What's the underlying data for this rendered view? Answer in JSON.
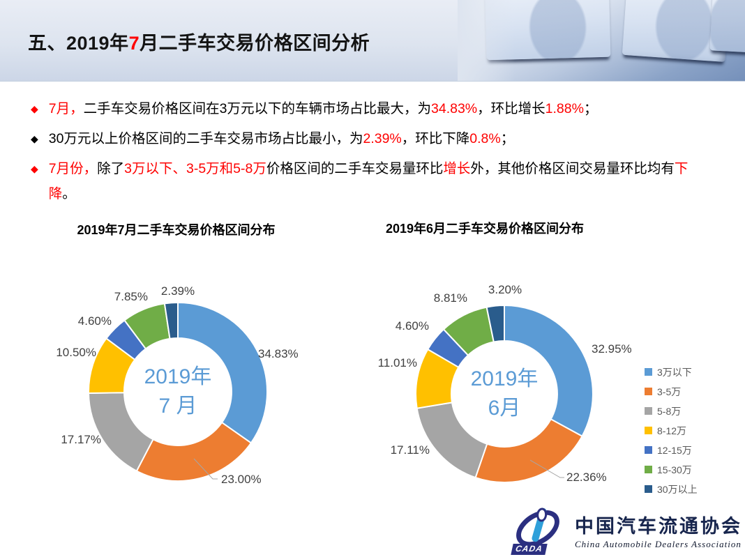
{
  "slide_title_parts": [
    {
      "text": "五、2019年",
      "red": false
    },
    {
      "text": "7",
      "red": true
    },
    {
      "text": "月二手车交易价格区间分析",
      "red": false
    }
  ],
  "bullets": [
    {
      "marker_color": "#FE0000",
      "segments": [
        {
          "text": "7月，",
          "red": true
        },
        {
          "text": "二手车交易价格区间在3万元以下的车辆市场占比最大，为",
          "red": false
        },
        {
          "text": "34.83%",
          "red": true
        },
        {
          "text": "，环比增长",
          "red": false
        },
        {
          "text": "1.88%",
          "red": true
        },
        {
          "text": "；",
          "red": false
        }
      ]
    },
    {
      "marker_color": "#000000",
      "segments": [
        {
          "text": "30万元以上价格区间的二手车交易市场占比最小，为",
          "red": false
        },
        {
          "text": "2.39%",
          "red": true
        },
        {
          "text": "，环比下降",
          "red": false
        },
        {
          "text": "0.8%",
          "red": true
        },
        {
          "text": "；",
          "red": false
        }
      ]
    },
    {
      "marker_color": "#FE0000",
      "segments": [
        {
          "text": "7月份，",
          "red": true
        },
        {
          "text": "除了",
          "red": false
        },
        {
          "text": "3万以下、3-5万和5-8万",
          "red": true
        },
        {
          "text": "价格区间的二手车交易量环比",
          "red": false
        },
        {
          "text": "增长",
          "red": true
        },
        {
          "text": "外，其他价格区间交易量环比均有",
          "red": false
        },
        {
          "text": "下降",
          "red": true
        },
        {
          "text": "。",
          "red": false
        }
      ]
    }
  ],
  "chart_data": [
    {
      "type": "donut",
      "title": "2019年7月二手车交易价格区间分布",
      "center_label": [
        "2019年",
        "7 月"
      ],
      "categories": [
        "3万以下",
        "3-5万",
        "5-8万",
        "8-12万",
        "12-15万",
        "15-30万",
        "30万以上"
      ],
      "values": [
        34.83,
        23.0,
        17.17,
        10.5,
        4.6,
        7.85,
        2.39
      ],
      "labels": [
        "34.83%",
        "23.00%",
        "17.17%",
        "10.50%",
        "4.60%",
        "7.85%",
        "2.39%"
      ],
      "colors": [
        "#5B9BD5",
        "#ED7D31",
        "#A5A5A5",
        "#FFC000",
        "#4472C4",
        "#70AD47",
        "#2A5C8C"
      ],
      "unit": "%",
      "start_angle": 0,
      "direction": "clockwise"
    },
    {
      "type": "donut",
      "title": "2019年6月二手车交易价格区间分布",
      "center_label": [
        "2019年",
        "6月"
      ],
      "categories": [
        "3万以下",
        "3-5万",
        "5-8万",
        "8-12万",
        "12-15万",
        "15-30万",
        "30万以上"
      ],
      "values": [
        32.95,
        22.36,
        17.11,
        11.01,
        4.6,
        8.81,
        3.2
      ],
      "labels": [
        "32.95%",
        "22.36%",
        "17.11%",
        "11.01%",
        "4.60%",
        "8.81%",
        "3.20%"
      ],
      "colors": [
        "#5B9BD5",
        "#ED7D31",
        "#A5A5A5",
        "#FFC000",
        "#4472C4",
        "#70AD47",
        "#2A5C8C"
      ],
      "unit": "%",
      "start_angle": 0,
      "direction": "clockwise"
    }
  ],
  "legend": {
    "position": "right",
    "items": [
      {
        "label": "3万以下",
        "color": "#5B9BD5"
      },
      {
        "label": "3-5万",
        "color": "#ED7D31"
      },
      {
        "label": "5-8万",
        "color": "#A5A5A5"
      },
      {
        "label": "8-12万",
        "color": "#FFC000"
      },
      {
        "label": "12-15万",
        "color": "#4472C4"
      },
      {
        "label": "15-30万",
        "color": "#70AD47"
      },
      {
        "label": "30万以上",
        "color": "#2A5C8C"
      }
    ]
  },
  "logo": {
    "acronym": "CADA",
    "name_cn": "中国汽车流通协会",
    "name_en": "China Automobile Dealers Association"
  },
  "colors": {
    "accent_red": "#FE0000",
    "center_text": "#5B9BD5",
    "label_gray": "#404040",
    "leader_line": "#A6A6A6"
  }
}
